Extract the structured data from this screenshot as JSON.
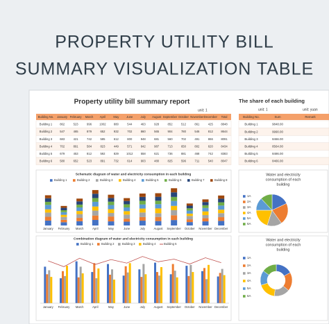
{
  "header": {
    "title_lines": [
      "PROPERTY UTILITY BILL",
      "SUMMARY VISUALIZATION TABLE"
    ]
  },
  "report": {
    "title": "Property utility bill summary report",
    "unit": "unit: 1",
    "columns": [
      "Building No.",
      "January",
      "February",
      "March",
      "April",
      "May",
      "June",
      "July",
      "August",
      "September",
      "October",
      "November",
      "December",
      "Total"
    ],
    "rows": [
      [
        "Building 1",
        862,
        523,
        996,
        1002,
        880,
        544,
        463,
        928,
        852,
        512,
        861,
        425,
        8848
      ],
      [
        "Building 2",
        547,
        465,
        879,
        652,
        932,
        702,
        860,
        565,
        904,
        780,
        546,
        812,
        8644
      ],
      [
        "Building 3",
        683,
        421,
        742,
        585,
        612,
        800,
        948,
        681,
        560,
        702,
        491,
        866,
        8091
      ],
      [
        "Building 4",
        702,
        891,
        584,
        823,
        449,
        571,
        642,
        987,
        713,
        650,
        802,
        620,
        8434
      ],
      [
        "Building 5",
        679,
        453,
        812,
        592,
        829,
        1012,
        558,
        621,
        736,
        881,
        468,
        742,
        8383
      ],
      [
        "Building 6",
        580,
        652,
        523,
        891,
        732,
        614,
        903,
        480,
        825,
        596,
        711,
        540,
        8047
      ]
    ]
  },
  "share": {
    "title": "The share of each building",
    "units": [
      "unit: 1",
      "unit: yuan"
    ],
    "columns": [
      "Building No.",
      "Sum",
      "Remark"
    ],
    "rows": [
      [
        "Building 1",
        "9848.00"
      ],
      [
        "Building 2",
        "9990.00"
      ],
      [
        "Building 3",
        "8466.00"
      ],
      [
        "Building 4",
        "8564.00"
      ],
      [
        "Building 5",
        "8486.00"
      ],
      [
        "Building 6",
        "8466.00"
      ]
    ]
  },
  "chart_data": [
    {
      "type": "stacked_bar",
      "title": "Schematic diagram of water and electricity consumption in each building",
      "categories": [
        "January",
        "February",
        "March",
        "April",
        "May",
        "June",
        "July",
        "August",
        "September",
        "October",
        "November",
        "December"
      ],
      "ylim": [
        0,
        5000
      ],
      "series": [
        {
          "name": "Building 1",
          "color": "#4472c4",
          "values": [
            620,
            410,
            540,
            700,
            520,
            480,
            610,
            560,
            690,
            430,
            520,
            580
          ]
        },
        {
          "name": "Building 2",
          "color": "#ed7d31",
          "values": [
            480,
            300,
            420,
            560,
            610,
            380,
            450,
            520,
            600,
            350,
            410,
            470
          ]
        },
        {
          "name": "Building 3",
          "color": "#a5a5a5",
          "values": [
            530,
            360,
            480,
            620,
            450,
            520,
            580,
            470,
            640,
            420,
            390,
            510
          ]
        },
        {
          "name": "Building 4",
          "color": "#ffc000",
          "values": [
            410,
            280,
            390,
            520,
            480,
            430,
            500,
            610,
            550,
            300,
            460,
            440
          ]
        },
        {
          "name": "Building 5",
          "color": "#5b9bd5",
          "values": [
            560,
            330,
            450,
            590,
            530,
            470,
            520,
            540,
            620,
            380,
            430,
            520
          ]
        },
        {
          "name": "Building 6",
          "color": "#70ad47",
          "values": [
            390,
            250,
            360,
            480,
            420,
            400,
            460,
            430,
            510,
            290,
            350,
            410
          ]
        },
        {
          "name": "Building 7",
          "color": "#264478",
          "values": [
            450,
            300,
            410,
            540,
            470,
            420,
            490,
            500,
            580,
            330,
            400,
            460
          ]
        },
        {
          "name": "Building 8",
          "color": "#9e480e",
          "values": [
            380,
            240,
            350,
            470,
            410,
            360,
            430,
            450,
            520,
            280,
            340,
            400
          ]
        }
      ]
    },
    {
      "type": "pie",
      "title_lines": [
        "Water and electricity",
        "consumption of each",
        "building"
      ],
      "categories": [
        "1A",
        "2A",
        "3A",
        "4A",
        "5A",
        "6A"
      ],
      "colors": [
        "#4472c4",
        "#ed7d31",
        "#a5a5a5",
        "#ffc000",
        "#5b9bd5",
        "#70ad47"
      ],
      "values": [
        18,
        22,
        15,
        20,
        13,
        12
      ]
    },
    {
      "type": "bar_line",
      "title": "Combination diagram of water and electricity consumption in each building",
      "categories": [
        "January",
        "February",
        "March",
        "April",
        "May",
        "June",
        "July",
        "August",
        "September",
        "October",
        "November",
        "December"
      ],
      "ylim": [
        0,
        1200
      ],
      "series": [
        {
          "name": "Building 1",
          "type": "bar",
          "color": "#4472c4",
          "values": [
            820,
            560,
            940,
            700,
            880,
            620,
            760,
            910,
            650,
            840,
            720,
            600
          ]
        },
        {
          "name": "Building 2",
          "type": "bar",
          "color": "#ed7d31",
          "values": [
            650,
            720,
            580,
            900,
            640,
            830,
            590,
            700,
            880,
            610,
            790,
            680
          ]
        },
        {
          "name": "Building 3",
          "type": "bar",
          "color": "#a5a5a5",
          "values": [
            740,
            610,
            820,
            560,
            760,
            690,
            880,
            620,
            730,
            860,
            540,
            770
          ]
        },
        {
          "name": "Building 4",
          "type": "bar",
          "color": "#ffc000",
          "values": [
            590,
            840,
            670,
            780,
            530,
            900,
            650,
            810,
            580,
            700,
            860,
            630
          ]
        },
        {
          "name": "Building 5",
          "type": "line",
          "color": "#c0504d",
          "values": [
            950,
            820,
            1010,
            870,
            980,
            900,
            1050,
            930,
            990,
            880,
            1020,
            910
          ]
        }
      ]
    },
    {
      "type": "doughnut",
      "title_lines": [
        "Water and electricity",
        "consumption of each",
        "building"
      ],
      "categories": [
        "1A",
        "2A",
        "3A",
        "4A",
        "5A",
        "6A"
      ],
      "colors": [
        "#4472c4",
        "#ed7d31",
        "#a5a5a5",
        "#ffc000",
        "#5b9bd5",
        "#70ad47"
      ],
      "values": [
        17,
        19,
        16,
        18,
        15,
        15
      ]
    }
  ]
}
